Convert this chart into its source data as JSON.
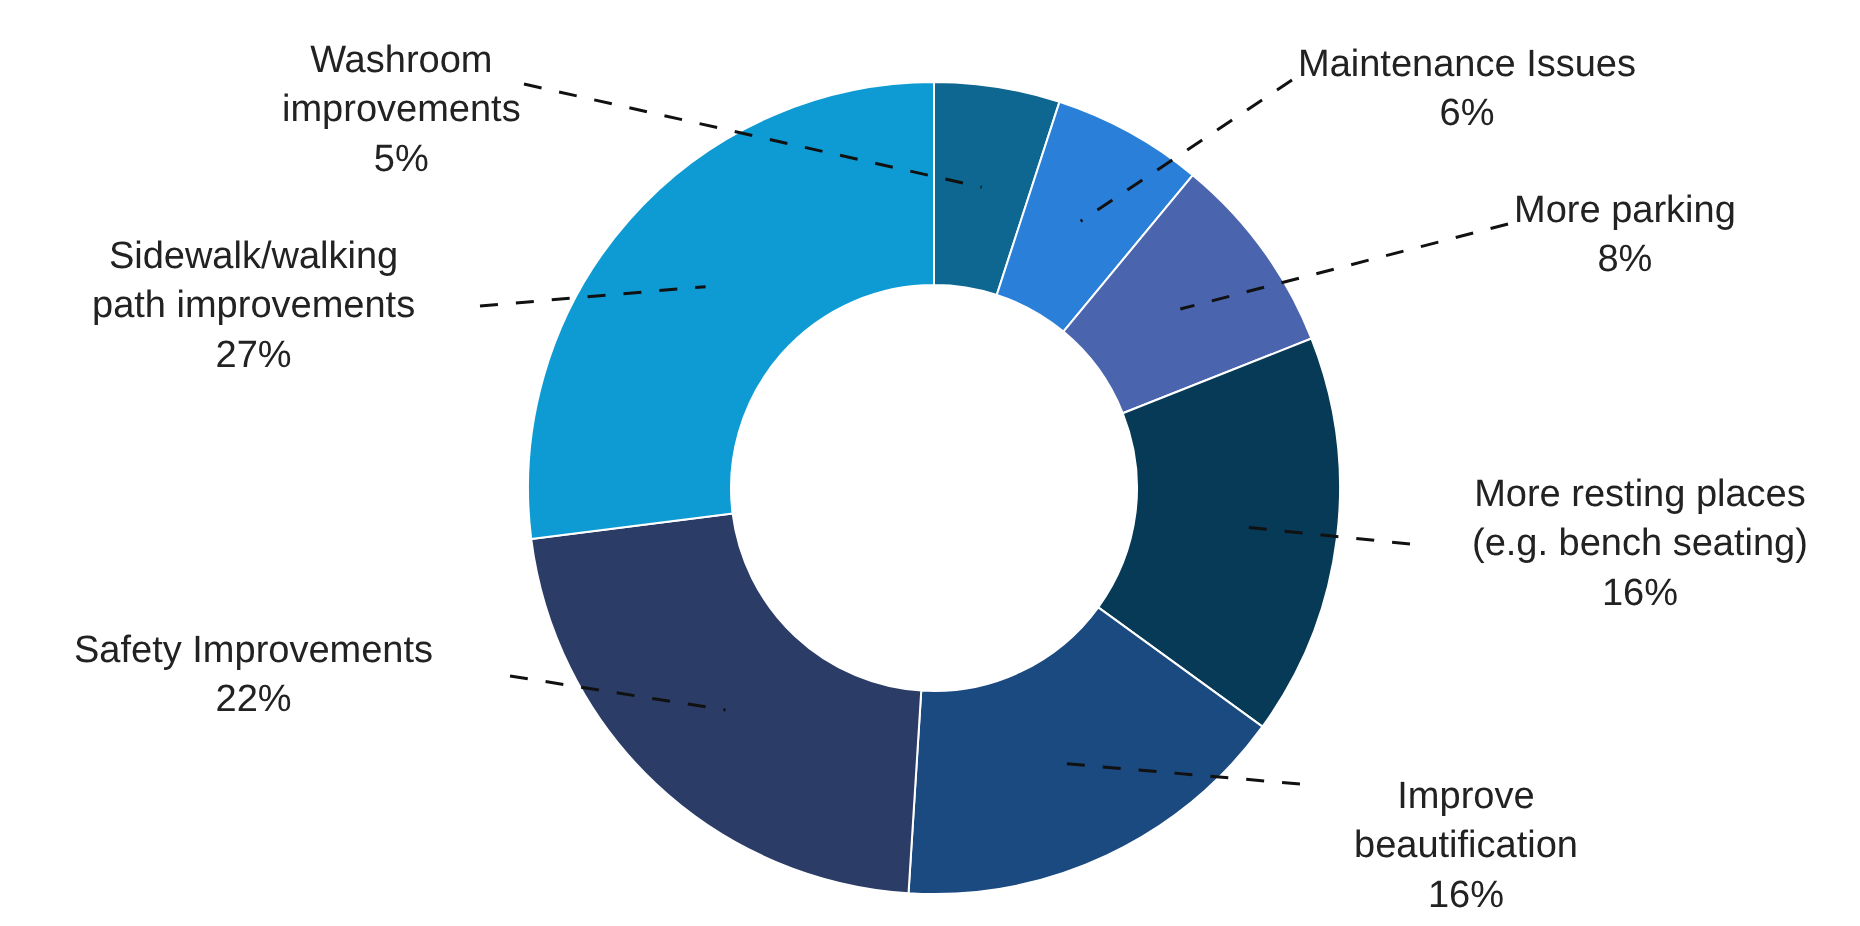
{
  "chart_data": {
    "type": "donut",
    "categories": [
      "Washroom improvements",
      "Maintenance Issues",
      "More parking",
      "More resting places (e.g. bench seating)",
      "Improve beautification",
      "Safety Improvements",
      "Sidewalk/walking path improvements"
    ],
    "values": [
      5,
      6,
      8,
      16,
      16,
      22,
      27
    ],
    "value_labels": [
      "5%",
      "6%",
      "8%",
      "16%",
      "16%",
      "22%",
      "27%"
    ],
    "colors": [
      "#0e6790",
      "#2a80d8",
      "#4a64ae",
      "#063a56",
      "#1a4a80",
      "#2b3c66",
      "#0e9bd3"
    ],
    "legend": false
  }
}
